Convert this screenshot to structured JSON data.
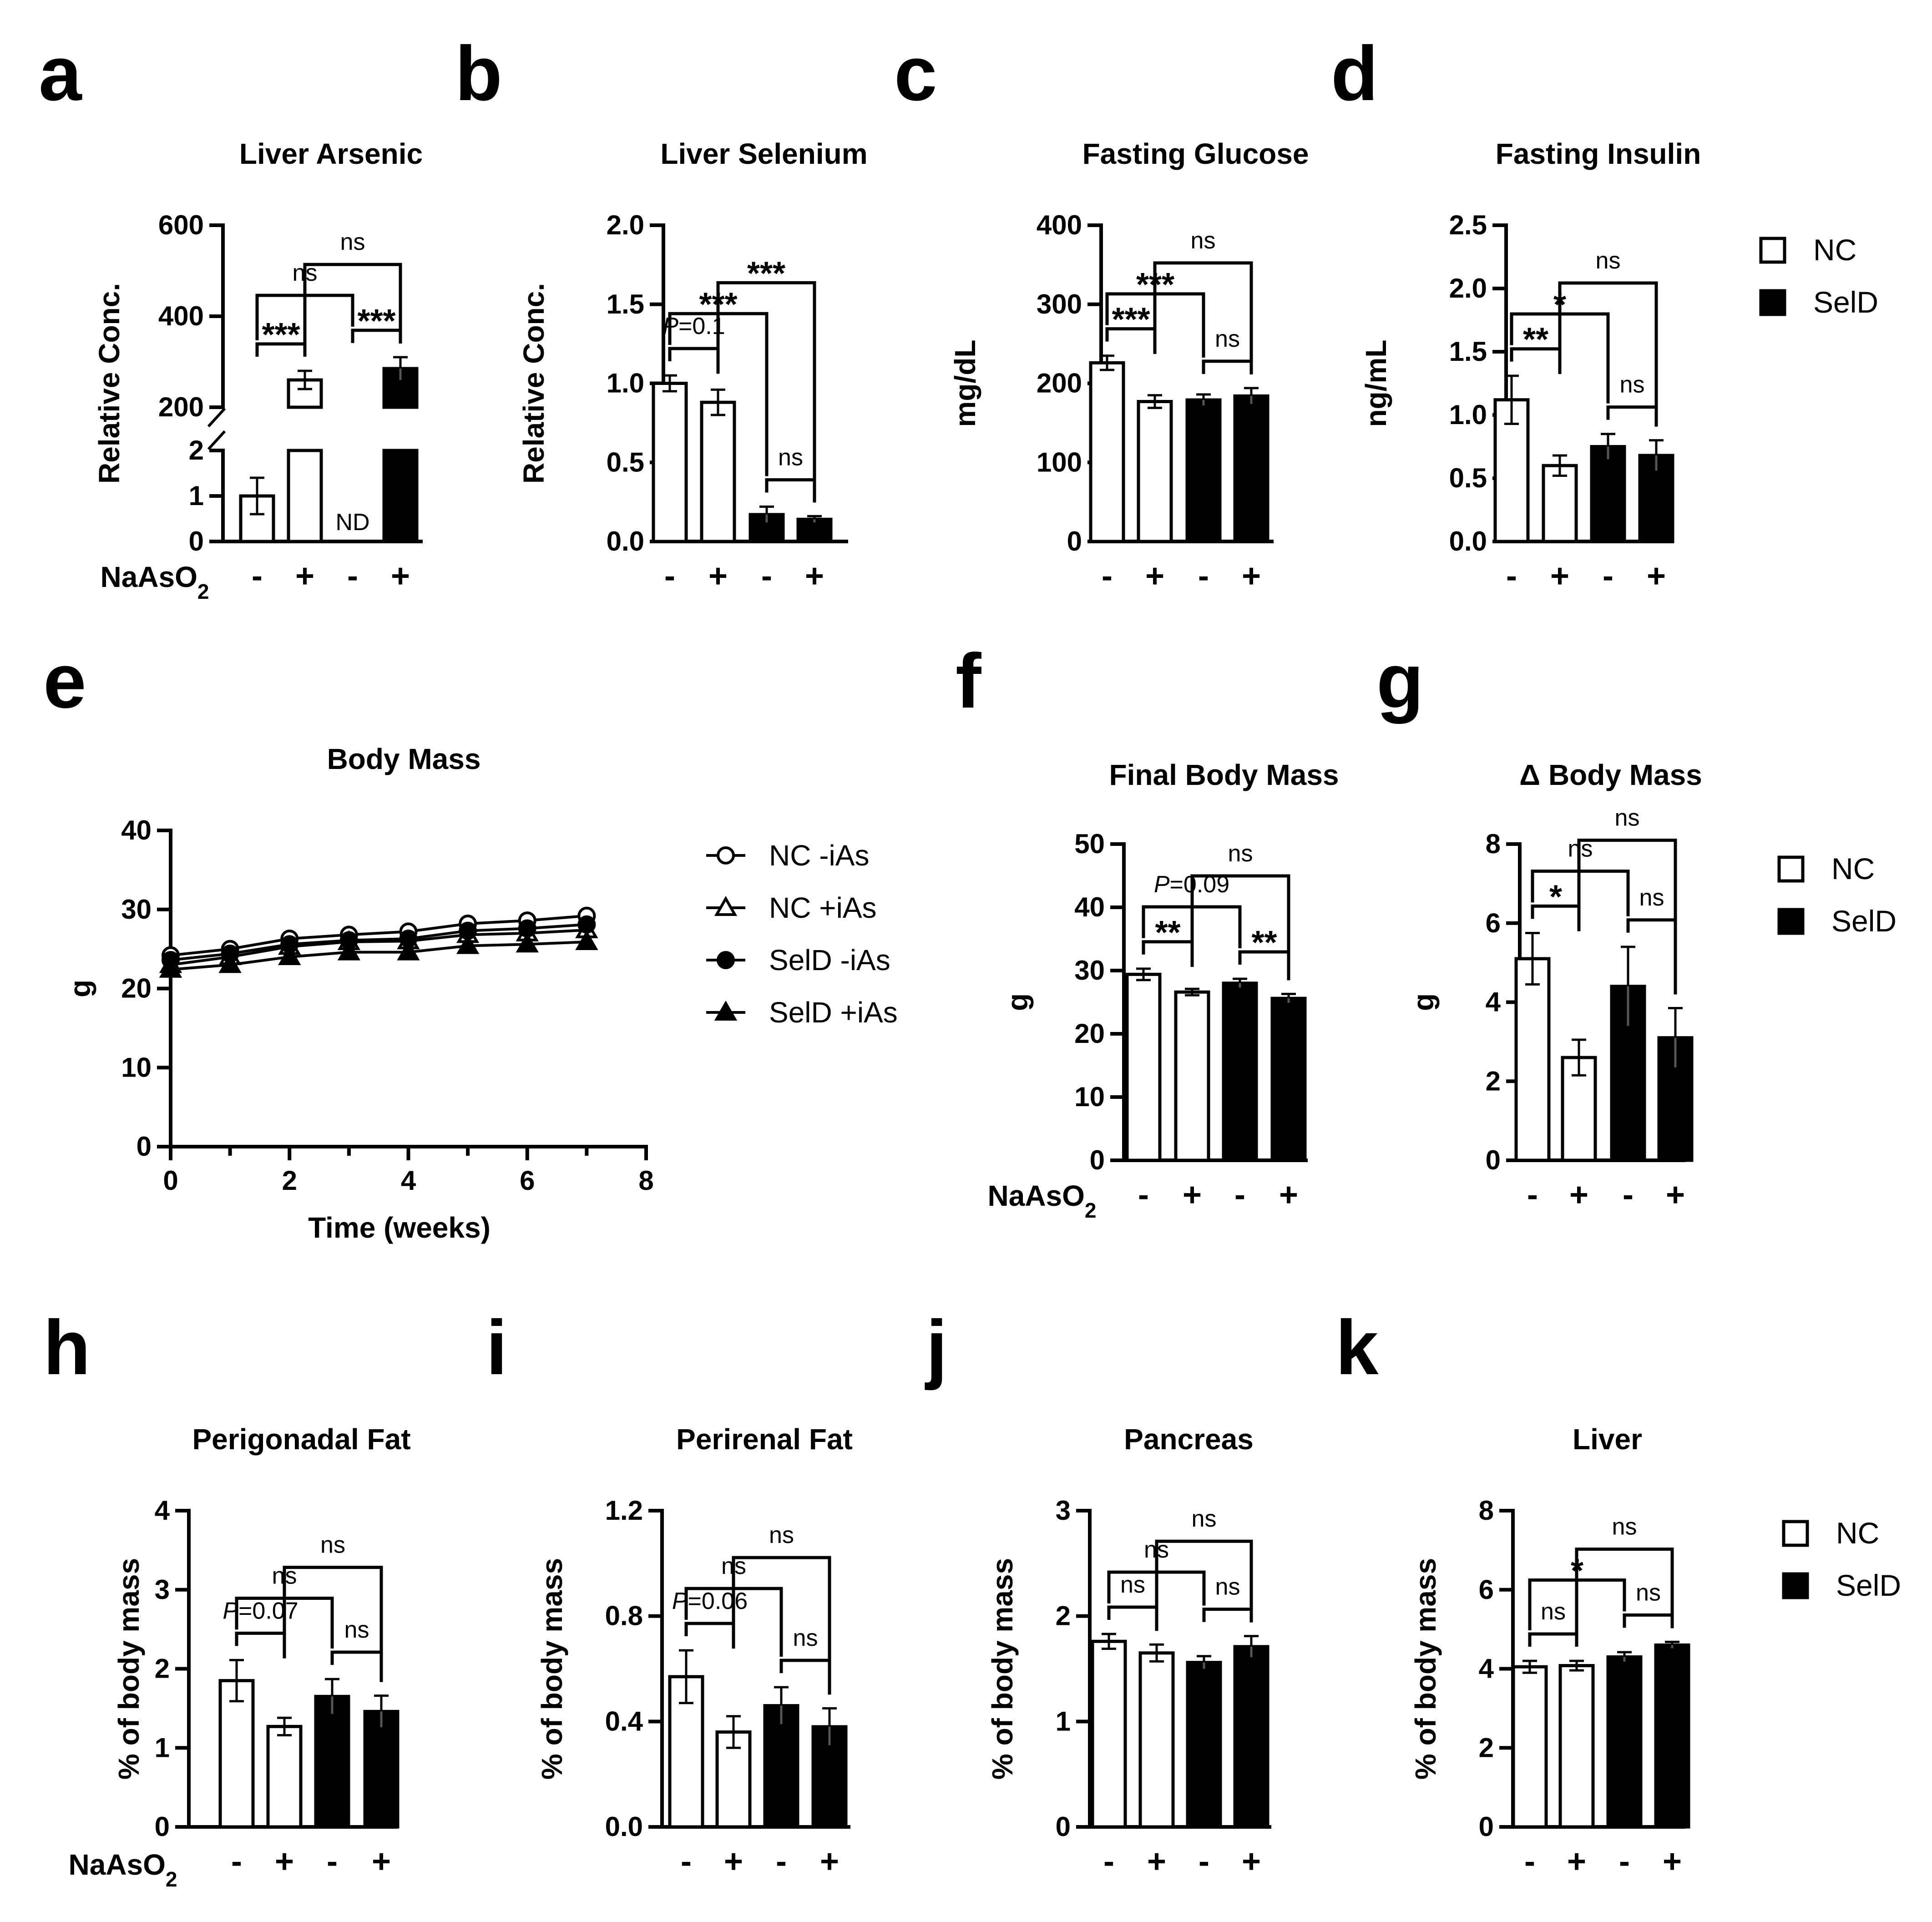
{
  "figure": {
    "treatment_label": "NaAsO",
    "treatment_subscript": "2",
    "minus_symbol": "-",
    "plus_symbol": "+"
  },
  "legends": {
    "groups": [
      "NC",
      "SelD"
    ],
    "body_mass_series": [
      "NC -iAs",
      "NC +iAs",
      "SelD -iAs",
      "SelD +iAs"
    ]
  },
  "chart_data": [
    {
      "id": "a",
      "panel_letter": "a",
      "type": "bar",
      "title": "Liver Arsenic",
      "ylabel": "Relative Conc.",
      "xlabel": "",
      "categories": [
        "NC -",
        "NC +",
        "SelD -",
        "SelD +"
      ],
      "treatment": [
        "-",
        "+",
        "-",
        "+"
      ],
      "fills": [
        "white",
        "white",
        "black",
        "black"
      ],
      "values": [
        1,
        260,
        null,
        285
      ],
      "errors": [
        0.4,
        20,
        null,
        25
      ],
      "value_labels": [
        null,
        null,
        "ND",
        null
      ],
      "broken_axis": true,
      "lower_segment": {
        "ylim": [
          0,
          2
        ],
        "ticks": [
          0,
          1,
          2
        ]
      },
      "upper_segment": {
        "ylim": [
          200,
          600
        ],
        "ticks": [
          200,
          400,
          600
        ]
      },
      "show_treatment_label": true,
      "annotations": [
        {
          "from": 0,
          "to": 1,
          "label": "***"
        },
        {
          "from": 2,
          "to": 3,
          "label": "***"
        },
        {
          "from": 0,
          "to": 2,
          "label": "ns"
        },
        {
          "from": 1,
          "to": 3,
          "label": "ns"
        }
      ]
    },
    {
      "id": "b",
      "panel_letter": "b",
      "type": "bar",
      "title": "Liver Selenium",
      "ylabel": "Relative Conc.",
      "xlabel": "",
      "categories": [
        "NC -",
        "NC +",
        "SelD -",
        "SelD +"
      ],
      "treatment": [
        "-",
        "+",
        "-",
        "+"
      ],
      "fills": [
        "white",
        "white",
        "black",
        "black"
      ],
      "values": [
        1.0,
        0.88,
        0.17,
        0.14
      ],
      "errors": [
        0.05,
        0.08,
        0.05,
        0.02
      ],
      "ylim": [
        0,
        2.0
      ],
      "yticks": [
        "0.0",
        "0.5",
        "1.0",
        "1.5",
        "2.0"
      ],
      "annotations": [
        {
          "from": 0,
          "to": 1,
          "label": "P=0.1",
          "italic_prefix": "P"
        },
        {
          "from": 2,
          "to": 3,
          "label": "ns"
        },
        {
          "from": 0,
          "to": 2,
          "label": "***"
        },
        {
          "from": 1,
          "to": 3,
          "label": "***"
        }
      ]
    },
    {
      "id": "c",
      "panel_letter": "c",
      "type": "bar",
      "title": "Fasting Glucose",
      "ylabel": "mg/dL",
      "xlabel": "",
      "categories": [
        "NC -",
        "NC +",
        "SelD -",
        "SelD +"
      ],
      "treatment": [
        "-",
        "+",
        "-",
        "+"
      ],
      "fills": [
        "white",
        "white",
        "black",
        "black"
      ],
      "values": [
        226,
        177,
        179,
        184
      ],
      "errors": [
        9,
        8,
        7,
        10
      ],
      "ylim": [
        0,
        400
      ],
      "yticks": [
        "0",
        "100",
        "200",
        "300",
        "400"
      ],
      "annotations": [
        {
          "from": 0,
          "to": 1,
          "label": "***"
        },
        {
          "from": 2,
          "to": 3,
          "label": "ns"
        },
        {
          "from": 0,
          "to": 2,
          "label": "***"
        },
        {
          "from": 1,
          "to": 3,
          "label": "ns"
        }
      ]
    },
    {
      "id": "d",
      "panel_letter": "d",
      "type": "bar",
      "title": "Fasting Insulin",
      "ylabel": "ng/mL",
      "xlabel": "",
      "categories": [
        "NC -",
        "NC +",
        "SelD -",
        "SelD +"
      ],
      "treatment": [
        "-",
        "+",
        "-",
        "+"
      ],
      "fills": [
        "white",
        "white",
        "black",
        "black"
      ],
      "values": [
        1.12,
        0.6,
        0.75,
        0.68
      ],
      "errors": [
        0.19,
        0.08,
        0.1,
        0.12
      ],
      "ylim": [
        0,
        2.5
      ],
      "yticks": [
        "0.0",
        "0.5",
        "1.0",
        "1.5",
        "2.0",
        "2.5"
      ],
      "annotations": [
        {
          "from": 0,
          "to": 1,
          "label": "**"
        },
        {
          "from": 2,
          "to": 3,
          "label": "ns"
        },
        {
          "from": 0,
          "to": 2,
          "label": "*"
        },
        {
          "from": 1,
          "to": 3,
          "label": "ns"
        }
      ]
    },
    {
      "id": "e",
      "panel_letter": "e",
      "type": "line",
      "title": "Body Mass",
      "xlabel": "Time (weeks)",
      "ylabel": "g",
      "xlim": [
        0,
        8
      ],
      "xticks": [
        "0",
        "2",
        "4",
        "6",
        "8"
      ],
      "ylim": [
        0,
        40
      ],
      "yticks": [
        "0",
        "10",
        "20",
        "30",
        "40"
      ],
      "x": [
        0,
        1,
        2,
        3,
        4,
        5,
        6,
        7
      ],
      "series": [
        {
          "name": "NC -iAs",
          "marker": "circle-open",
          "values": [
            24.2,
            25.0,
            26.3,
            26.8,
            27.2,
            28.2,
            28.6,
            29.2
          ]
        },
        {
          "name": "NC +iAs",
          "marker": "triangle-open",
          "values": [
            23.0,
            24.0,
            25.3,
            25.9,
            26.0,
            26.8,
            27.0,
            27.4
          ]
        },
        {
          "name": "SelD -iAs",
          "marker": "circle-filled",
          "values": [
            23.6,
            24.4,
            25.6,
            26.1,
            26.3,
            27.3,
            27.6,
            28.1
          ]
        },
        {
          "name": "SelD +iAs",
          "marker": "triangle-filled",
          "values": [
            22.4,
            23.0,
            24.0,
            24.6,
            24.6,
            25.4,
            25.6,
            25.9
          ]
        }
      ]
    },
    {
      "id": "f",
      "panel_letter": "f",
      "type": "bar",
      "title": "Final Body Mass",
      "ylabel": "g",
      "xlabel": "",
      "categories": [
        "NC -",
        "NC +",
        "SelD -",
        "SelD +"
      ],
      "treatment": [
        "-",
        "+",
        "-",
        "+"
      ],
      "fills": [
        "white",
        "white",
        "black",
        "black"
      ],
      "values": [
        29.4,
        26.6,
        28.0,
        25.6
      ],
      "errors": [
        0.9,
        0.5,
        0.7,
        0.7
      ],
      "ylim": [
        0,
        50
      ],
      "yticks": [
        "0",
        "10",
        "20",
        "30",
        "40",
        "50"
      ],
      "show_treatment_label": true,
      "annotations": [
        {
          "from": 0,
          "to": 1,
          "label": "**"
        },
        {
          "from": 2,
          "to": 3,
          "label": "**"
        },
        {
          "from": 0,
          "to": 2,
          "label": "P=0.09",
          "italic_prefix": "P"
        },
        {
          "from": 1,
          "to": 3,
          "label": "ns"
        }
      ]
    },
    {
      "id": "g",
      "panel_letter": "g",
      "type": "bar",
      "title": "Δ Body Mass",
      "ylabel": "g",
      "xlabel": "",
      "categories": [
        "NC -",
        "NC +",
        "SelD -",
        "SelD +"
      ],
      "treatment": [
        "-",
        "+",
        "-",
        "+"
      ],
      "fills": [
        "white",
        "white",
        "black",
        "black"
      ],
      "values": [
        5.1,
        2.6,
        4.4,
        3.1
      ],
      "errors": [
        0.65,
        0.45,
        1.0,
        0.75
      ],
      "ylim": [
        0,
        8
      ],
      "yticks": [
        "0",
        "2",
        "4",
        "6",
        "8"
      ],
      "annotations": [
        {
          "from": 0,
          "to": 1,
          "label": "*"
        },
        {
          "from": 2,
          "to": 3,
          "label": "ns"
        },
        {
          "from": 0,
          "to": 2,
          "label": "ns"
        },
        {
          "from": 1,
          "to": 3,
          "label": "ns"
        }
      ]
    },
    {
      "id": "h",
      "panel_letter": "h",
      "type": "bar",
      "title": "Perigonadal Fat",
      "ylabel": "% of body mass",
      "xlabel": "",
      "categories": [
        "NC -",
        "NC +",
        "SelD -",
        "SelD +"
      ],
      "treatment": [
        "-",
        "+",
        "-",
        "+"
      ],
      "fills": [
        "white",
        "white",
        "black",
        "black"
      ],
      "values": [
        1.85,
        1.27,
        1.65,
        1.46
      ],
      "errors": [
        0.26,
        0.11,
        0.22,
        0.2
      ],
      "ylim": [
        0,
        4
      ],
      "yticks": [
        "0",
        "1",
        "2",
        "3",
        "4"
      ],
      "show_treatment_label": true,
      "annotations": [
        {
          "from": 0,
          "to": 1,
          "label": "P=0.07",
          "italic_prefix": "P"
        },
        {
          "from": 2,
          "to": 3,
          "label": "ns"
        },
        {
          "from": 0,
          "to": 2,
          "label": "ns"
        },
        {
          "from": 1,
          "to": 3,
          "label": "ns"
        }
      ]
    },
    {
      "id": "i",
      "panel_letter": "i",
      "type": "bar",
      "title": "Perirenal Fat",
      "ylabel": "% of body mass",
      "xlabel": "",
      "categories": [
        "NC -",
        "NC +",
        "SelD -",
        "SelD +"
      ],
      "treatment": [
        "-",
        "+",
        "-",
        "+"
      ],
      "fills": [
        "white",
        "white",
        "black",
        "black"
      ],
      "values": [
        0.57,
        0.36,
        0.46,
        0.38
      ],
      "errors": [
        0.1,
        0.06,
        0.07,
        0.07
      ],
      "ylim": [
        0,
        1.2
      ],
      "yticks": [
        "0.0",
        "0.4",
        "0.8",
        "1.2"
      ],
      "annotations": [
        {
          "from": 0,
          "to": 1,
          "label": "P=0.06",
          "italic_prefix": "P"
        },
        {
          "from": 2,
          "to": 3,
          "label": "ns"
        },
        {
          "from": 0,
          "to": 2,
          "label": "ns"
        },
        {
          "from": 1,
          "to": 3,
          "label": "ns"
        }
      ]
    },
    {
      "id": "j",
      "panel_letter": "j",
      "type": "bar",
      "title": "Pancreas",
      "ylabel": "% of body mass",
      "xlabel": "",
      "categories": [
        "NC -",
        "NC +",
        "SelD -",
        "SelD +"
      ],
      "treatment": [
        "-",
        "+",
        "-",
        "+"
      ],
      "fills": [
        "white",
        "white",
        "black",
        "black"
      ],
      "values": [
        1.76,
        1.65,
        1.56,
        1.71
      ],
      "errors": [
        0.07,
        0.08,
        0.06,
        0.1
      ],
      "ylim": [
        0,
        3
      ],
      "yticks": [
        "0",
        "1",
        "2",
        "3"
      ],
      "annotations": [
        {
          "from": 0,
          "to": 1,
          "label": "ns"
        },
        {
          "from": 2,
          "to": 3,
          "label": "ns"
        },
        {
          "from": 0,
          "to": 2,
          "label": "ns"
        },
        {
          "from": 1,
          "to": 3,
          "label": "ns"
        }
      ]
    },
    {
      "id": "k",
      "panel_letter": "k",
      "type": "bar",
      "title": "Liver",
      "ylabel": "% of body mass",
      "xlabel": "",
      "categories": [
        "NC -",
        "NC +",
        "SelD -",
        "SelD +"
      ],
      "treatment": [
        "-",
        "+",
        "-",
        "+"
      ],
      "fills": [
        "white",
        "white",
        "black",
        "black"
      ],
      "values": [
        4.05,
        4.08,
        4.3,
        4.6
      ],
      "errors": [
        0.15,
        0.12,
        0.12,
        0.08
      ],
      "ylim": [
        0,
        8
      ],
      "yticks": [
        "0",
        "2",
        "4",
        "6",
        "8"
      ],
      "annotations": [
        {
          "from": 0,
          "to": 1,
          "label": "ns"
        },
        {
          "from": 2,
          "to": 3,
          "label": "ns"
        },
        {
          "from": 0,
          "to": 2,
          "label": "*"
        },
        {
          "from": 1,
          "to": 3,
          "label": "ns"
        }
      ]
    }
  ]
}
